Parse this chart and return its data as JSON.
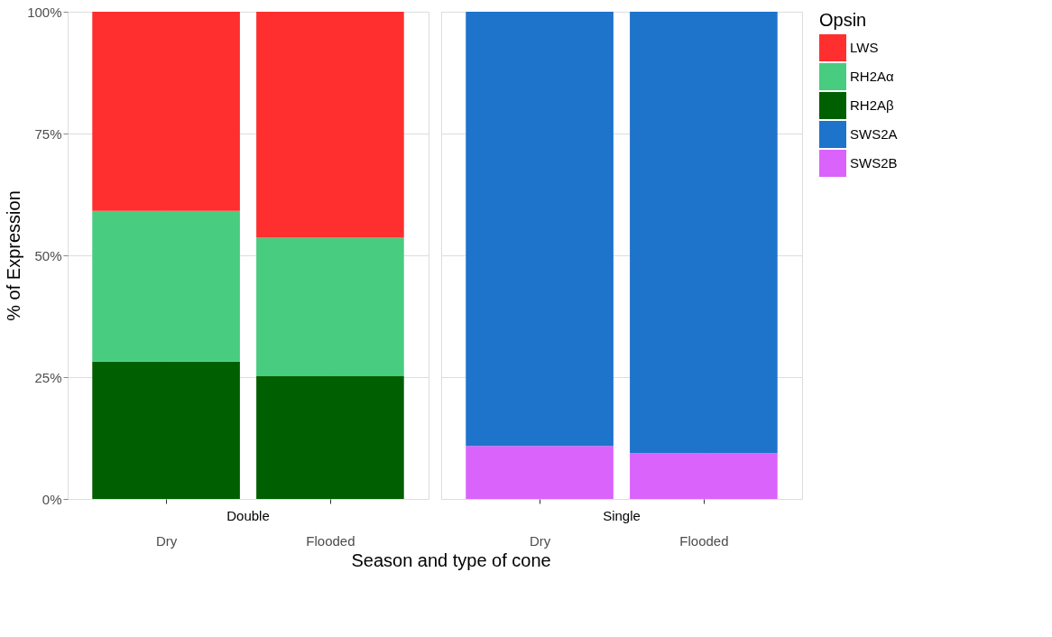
{
  "chart_data": [
    {
      "type": "bar",
      "title": "Double",
      "xlabel": "Season and type of cone",
      "ylabel": "% of Expression",
      "legend_title": "Opsin",
      "legend": "right",
      "grid": true,
      "stacked": true,
      "categories": [
        "Dry",
        "Flooded"
      ],
      "ylim": [
        0,
        100
      ],
      "yticks": [
        {
          "value": 0,
          "label": "0%"
        },
        {
          "value": 25,
          "label": "25%"
        },
        {
          "value": 50,
          "label": "50%"
        },
        {
          "value": 75,
          "label": "75%"
        },
        {
          "value": 100,
          "label": "100%"
        }
      ],
      "series": [
        {
          "name": "RH2Aβ",
          "color": "#005f00",
          "values": [
            28.2,
            25.3
          ]
        },
        {
          "name": "RH2Aα",
          "color": "#48cc80",
          "values": [
            30.9,
            28.3
          ]
        },
        {
          "name": "LWS",
          "color": "#ff2f2f",
          "values": [
            40.9,
            46.4
          ]
        }
      ]
    },
    {
      "type": "bar",
      "title": "Single",
      "legend": "right",
      "grid": true,
      "stacked": true,
      "tick_labels": "x",
      "categories": [
        "Dry",
        "Flooded"
      ],
      "ylim": [
        0,
        100
      ],
      "yticks": [
        0,
        25,
        50,
        75,
        100
      ],
      "series": [
        {
          "name": "SWS2B",
          "color": "#da63fb",
          "values": [
            10.9,
            9.4
          ]
        },
        {
          "name": "SWS2A",
          "color": "#1e73cb",
          "values": [
            89.1,
            90.6
          ]
        }
      ]
    }
  ]
}
